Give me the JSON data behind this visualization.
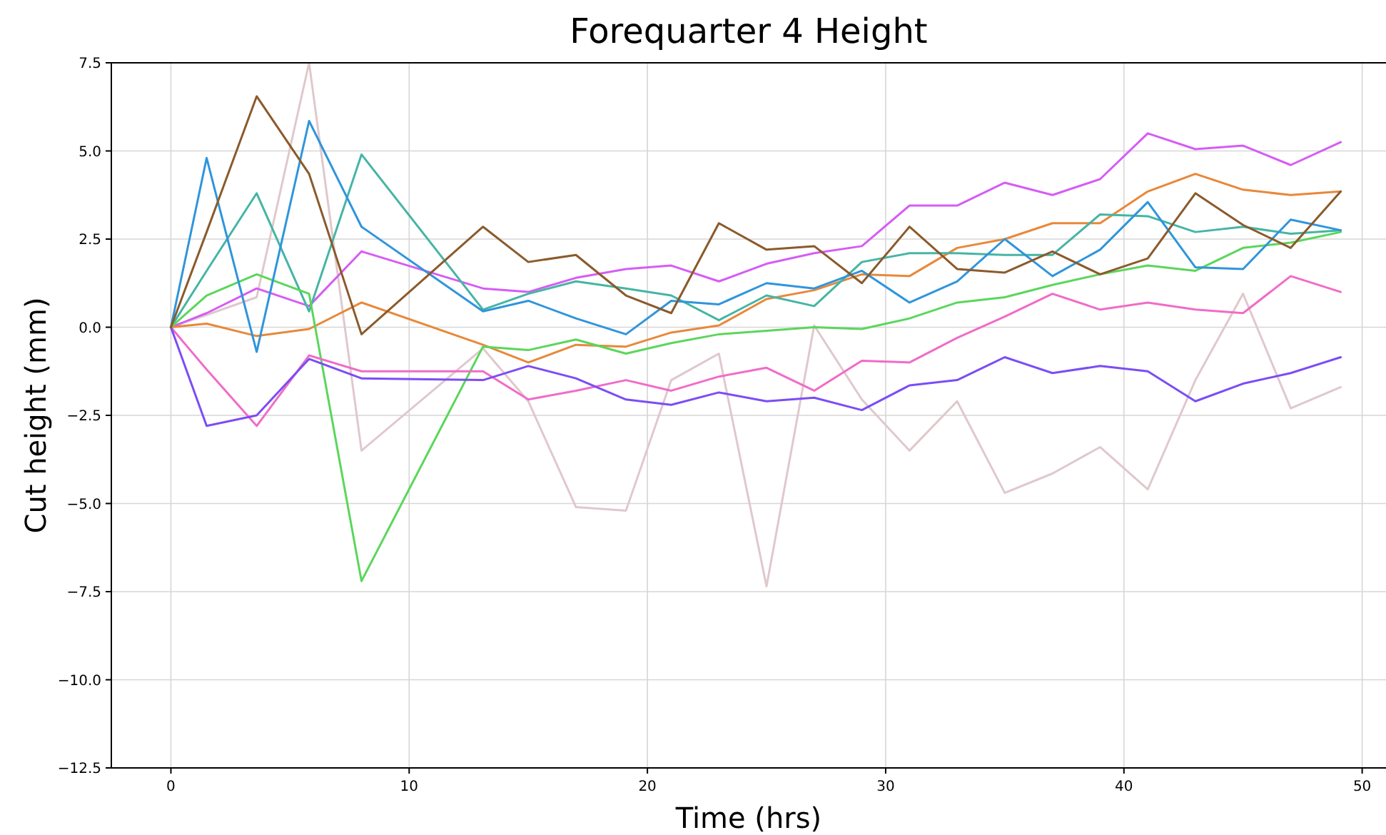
{
  "chart_data": {
    "type": "line",
    "title": "Forequarter 4 Height",
    "xlabel": "Time (hrs)",
    "ylabel": "Cut height (mm)",
    "x": [
      0,
      1.5,
      3.6,
      5.8,
      8.0,
      13.1,
      15.0,
      17.0,
      19.1,
      21.0,
      23.0,
      25.0,
      27.0,
      29.0,
      31.0,
      33.0,
      35.0,
      37.0,
      39.0,
      41.0,
      43.0,
      45.0,
      47.0,
      49.1
    ],
    "xlim": [
      -2.5,
      51
    ],
    "xticks": [
      0,
      10,
      20,
      30,
      40,
      50
    ],
    "ylim": [
      -12.5,
      7.5
    ],
    "yticks": [
      {
        "value": -12.5,
        "label": "−12.5"
      },
      {
        "value": -10,
        "label": "−10.0"
      },
      {
        "value": -7.5,
        "label": "−7.5"
      },
      {
        "value": -5,
        "label": "−5.0"
      },
      {
        "value": -2.5,
        "label": "−2.5"
      },
      {
        "value": 0,
        "label": "0.0"
      },
      {
        "value": 2.5,
        "label": "2.5"
      },
      {
        "value": 5,
        "label": "5.0"
      },
      {
        "value": 7.5,
        "label": "7.5"
      }
    ],
    "grid": true,
    "series": [
      {
        "color": "#e0c8cc",
        "values": [
          0,
          0.35,
          0.85,
          7.5,
          -3.5,
          -0.6,
          -2.1,
          -5.1,
          -5.2,
          -1.5,
          -0.75,
          -7.35,
          0.05,
          -2.05,
          -3.5,
          -2.1,
          -4.7,
          -4.15,
          -3.4,
          -4.6,
          -1.5,
          0.95,
          -2.3,
          -1.7
        ]
      },
      {
        "color": "#d65cf5",
        "values": [
          0,
          0.4,
          1.1,
          0.6,
          2.15,
          1.1,
          1.0,
          1.4,
          1.65,
          1.75,
          1.3,
          1.8,
          2.1,
          2.3,
          3.45,
          3.45,
          4.1,
          3.75,
          4.2,
          5.5,
          5.05,
          5.15,
          4.6,
          5.25
        ]
      },
      {
        "color": "#e8883a",
        "values": [
          0,
          0.1,
          -0.25,
          -0.05,
          0.7,
          -0.5,
          -1.0,
          -0.5,
          -0.55,
          -0.15,
          0.05,
          0.8,
          1.05,
          1.5,
          1.45,
          2.25,
          2.5,
          2.95,
          2.95,
          3.85,
          4.35,
          3.9,
          3.75,
          3.85
        ]
      },
      {
        "color": "#45b5a5",
        "values": [
          0,
          1.6,
          3.8,
          0.45,
          4.9,
          0.5,
          0.95,
          1.3,
          1.1,
          0.9,
          0.2,
          0.9,
          0.6,
          1.85,
          2.1,
          2.1,
          2.05,
          2.05,
          3.2,
          3.15,
          2.7,
          2.85,
          2.65,
          2.75
        ]
      },
      {
        "color": "#5bd65b",
        "values": [
          0,
          0.9,
          1.5,
          0.95,
          -7.2,
          -0.55,
          -0.65,
          -0.35,
          -0.75,
          -0.45,
          -0.2,
          -0.1,
          0.0,
          -0.05,
          0.25,
          0.7,
          0.85,
          1.2,
          1.5,
          1.75,
          1.6,
          2.25,
          2.4,
          2.7
        ]
      },
      {
        "color": "#f06cc8",
        "values": [
          0,
          -1.2,
          -2.8,
          -0.8,
          -1.25,
          -1.25,
          -2.05,
          -1.8,
          -1.5,
          -1.8,
          -1.4,
          -1.15,
          -1.8,
          -0.95,
          -1.0,
          -0.3,
          0.3,
          0.95,
          0.5,
          0.7,
          0.5,
          0.4,
          1.45,
          1.0
        ]
      },
      {
        "color": "#7b4df5",
        "values": [
          0,
          -2.8,
          -2.5,
          -0.9,
          -1.45,
          -1.5,
          -1.1,
          -1.45,
          -2.05,
          -2.2,
          -1.85,
          -2.1,
          -2.0,
          -2.35,
          -1.65,
          -1.5,
          -0.85,
          -1.3,
          -1.1,
          -1.25,
          -2.1,
          -1.6,
          -1.3,
          -0.85
        ]
      },
      {
        "color": "#2f95dc",
        "values": [
          0,
          4.8,
          -0.7,
          5.85,
          2.85,
          0.45,
          0.75,
          0.25,
          -0.2,
          0.75,
          0.65,
          1.25,
          1.1,
          1.6,
          0.7,
          1.3,
          2.5,
          1.45,
          2.2,
          3.55,
          1.7,
          1.65,
          3.05,
          2.75
        ]
      },
      {
        "color": "#8b5a2b",
        "values": [
          0,
          2.7,
          6.55,
          4.35,
          -0.2,
          2.85,
          1.85,
          2.05,
          0.9,
          0.4,
          2.95,
          2.2,
          2.3,
          1.25,
          2.85,
          1.65,
          1.55,
          2.15,
          1.5,
          1.95,
          3.8,
          2.9,
          2.25,
          3.85
        ]
      }
    ]
  }
}
